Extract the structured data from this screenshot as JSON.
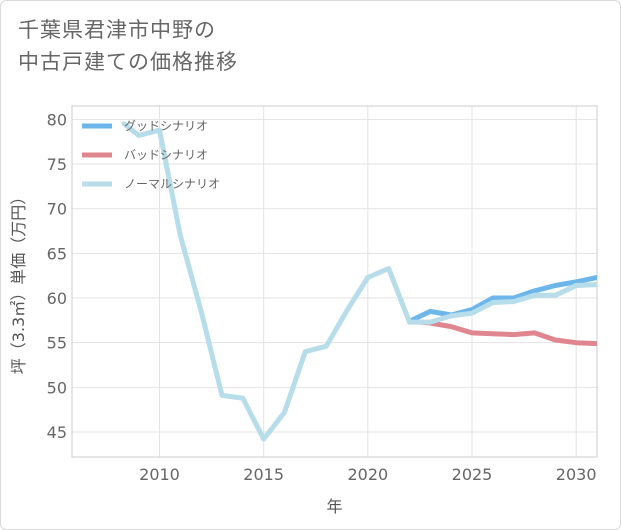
{
  "title_lines": [
    "千葉県君津市中野の",
    "中古戸建ての価格推移"
  ],
  "chart_data": {
    "type": "line",
    "title": "千葉県君津市中野の中古戸建ての価格推移",
    "xlabel": "年",
    "ylabel": "坪（3.3㎡）単価（万円）",
    "xlim": [
      2005.8,
      2031
    ],
    "ylim": [
      42.2,
      81.5
    ],
    "xticks": [
      2010,
      2015,
      2020,
      2025,
      2030
    ],
    "yticks": [
      45,
      50,
      55,
      60,
      65,
      70,
      75,
      80
    ],
    "grid": true,
    "legend_position": "top-left",
    "series": [
      {
        "name": "グッドシナリオ",
        "color": "#6cb6ea",
        "points": [
          [
            2022,
            57.4
          ],
          [
            2023,
            58.5
          ],
          [
            2024,
            58.1
          ],
          [
            2025,
            58.7
          ],
          [
            2026,
            60.0
          ],
          [
            2027,
            60.0
          ],
          [
            2028,
            60.8
          ],
          [
            2029,
            61.4
          ],
          [
            2030,
            61.8
          ],
          [
            2031,
            62.3
          ]
        ]
      },
      {
        "name": "バッドシナリオ",
        "color": "#e0868f",
        "points": [
          [
            2022,
            57.4
          ],
          [
            2023,
            57.2
          ],
          [
            2024,
            56.8
          ],
          [
            2025,
            56.1
          ],
          [
            2026,
            56.0
          ],
          [
            2027,
            55.9
          ],
          [
            2028,
            56.1
          ],
          [
            2029,
            55.3
          ],
          [
            2030,
            55.0
          ],
          [
            2031,
            54.9
          ]
        ]
      },
      {
        "name": "ノーマルシナリオ",
        "color": "#b7dcea",
        "points": [
          [
            2008.3,
            79.5
          ],
          [
            2009,
            78.2
          ],
          [
            2010,
            78.8
          ],
          [
            2011,
            67.0
          ],
          [
            2012,
            58.5
          ],
          [
            2013,
            49.1
          ],
          [
            2014,
            48.8
          ],
          [
            2015,
            44.2
          ],
          [
            2016,
            47.2
          ],
          [
            2017,
            54.0
          ],
          [
            2018,
            54.6
          ],
          [
            2019,
            58.6
          ],
          [
            2020,
            62.3
          ],
          [
            2021,
            63.3
          ],
          [
            2022,
            57.3
          ],
          [
            2023,
            57.3
          ],
          [
            2024,
            58.0
          ],
          [
            2025,
            58.3
          ],
          [
            2026,
            59.5
          ],
          [
            2027,
            59.6
          ],
          [
            2028,
            60.3
          ],
          [
            2029,
            60.3
          ],
          [
            2030,
            61.4
          ],
          [
            2031,
            61.5
          ]
        ]
      }
    ]
  }
}
